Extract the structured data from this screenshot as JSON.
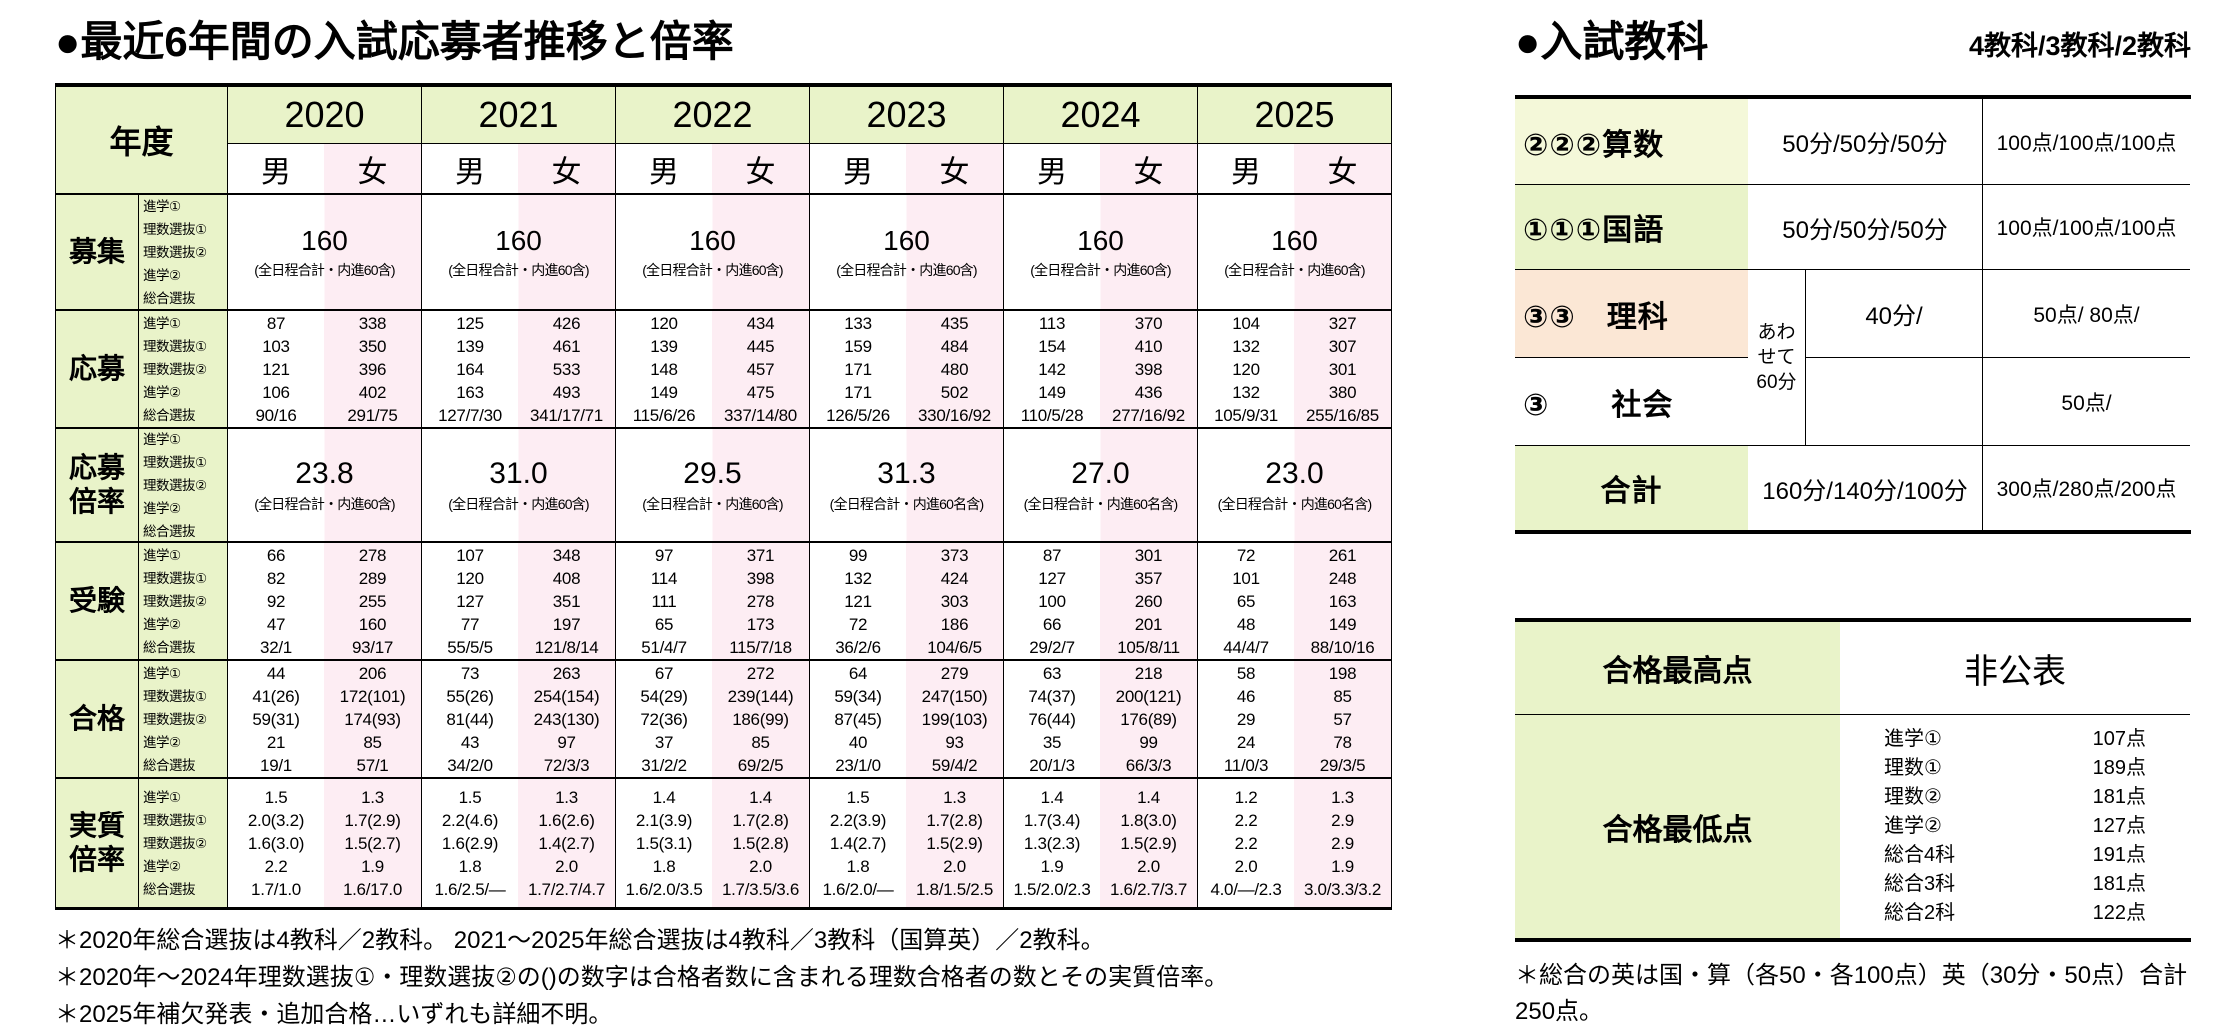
{
  "colors": {
    "label_green": "#e9f3c9",
    "female_pink": "#fdedf3",
    "science_peach": "#fbe7d5",
    "math_green": "#f4f8d9"
  },
  "left": {
    "title": "●最近6年間の入試応募者推移と倍率",
    "year_header": "年度",
    "years": [
      "2020",
      "2021",
      "2022",
      "2023",
      "2024",
      "2025"
    ],
    "genders": [
      "男",
      "女"
    ],
    "sub_labels": [
      "進学①",
      "理数選抜①",
      "理数選抜②",
      "進学②",
      "総合選抜"
    ],
    "boshu": {
      "label": "募集",
      "cols": [
        {
          "num": "160",
          "note": "(全日程合計・内進60含)"
        },
        {
          "num": "160",
          "note": "(全日程合計・内進60含)"
        },
        {
          "num": "160",
          "note": "(全日程合計・内進60含)"
        },
        {
          "num": "160",
          "note": "(全日程合計・内進60含)"
        },
        {
          "num": "160",
          "note": "(全日程合計・内進60含)"
        },
        {
          "num": "160",
          "note": "(全日程合計・内進60含)"
        }
      ]
    },
    "oubo": {
      "label": "応募",
      "cols": [
        [
          "87",
          "103",
          "121",
          "106",
          "90/16"
        ],
        [
          "338",
          "350",
          "396",
          "402",
          "291/75"
        ],
        [
          "125",
          "139",
          "164",
          "163",
          "127/7/30"
        ],
        [
          "426",
          "461",
          "533",
          "493",
          "341/17/71"
        ],
        [
          "120",
          "139",
          "148",
          "149",
          "115/6/26"
        ],
        [
          "434",
          "445",
          "457",
          "475",
          "337/14/80"
        ],
        [
          "133",
          "159",
          "171",
          "171",
          "126/5/26"
        ],
        [
          "435",
          "484",
          "480",
          "502",
          "330/16/92"
        ],
        [
          "113",
          "154",
          "142",
          "149",
          "110/5/28"
        ],
        [
          "370",
          "410",
          "398",
          "436",
          "277/16/92"
        ],
        [
          "104",
          "132",
          "120",
          "132",
          "105/9/31"
        ],
        [
          "327",
          "307",
          "301",
          "380",
          "255/16/85"
        ]
      ]
    },
    "oubo_bairitsu": {
      "label": [
        "応募",
        "倍率"
      ],
      "cols": [
        {
          "num": "23.8",
          "note": "(全日程合計・内進60含)"
        },
        {
          "num": "31.0",
          "note": "(全日程合計・内進60含)"
        },
        {
          "num": "29.5",
          "note": "(全日程合計・内進60含)"
        },
        {
          "num": "31.3",
          "note": "(全日程合計・内進60名含)"
        },
        {
          "num": "27.0",
          "note": "(全日程合計・内進60名含)"
        },
        {
          "num": "23.0",
          "note": "(全日程合計・内進60名含)"
        }
      ]
    },
    "juken": {
      "label": "受験",
      "cols": [
        [
          "66",
          "82",
          "92",
          "47",
          "32/1"
        ],
        [
          "278",
          "289",
          "255",
          "160",
          "93/17"
        ],
        [
          "107",
          "120",
          "127",
          "77",
          "55/5/5"
        ],
        [
          "348",
          "408",
          "351",
          "197",
          "121/8/14"
        ],
        [
          "97",
          "114",
          "111",
          "65",
          "51/4/7"
        ],
        [
          "371",
          "398",
          "278",
          "173",
          "115/7/18"
        ],
        [
          "99",
          "132",
          "121",
          "72",
          "36/2/6"
        ],
        [
          "373",
          "424",
          "303",
          "186",
          "104/6/5"
        ],
        [
          "87",
          "127",
          "100",
          "66",
          "29/2/7"
        ],
        [
          "301",
          "357",
          "260",
          "201",
          "105/8/11"
        ],
        [
          "72",
          "101",
          "65",
          "48",
          "44/4/7"
        ],
        [
          "261",
          "248",
          "163",
          "149",
          "88/10/16"
        ]
      ]
    },
    "goukaku": {
      "label": "合格",
      "cols": [
        [
          "44",
          "41(26)",
          "59(31)",
          "21",
          "19/1"
        ],
        [
          "206",
          "172(101)",
          "174(93)",
          "85",
          "57/1"
        ],
        [
          "73",
          "55(26)",
          "81(44)",
          "43",
          "34/2/0"
        ],
        [
          "263",
          "254(154)",
          "243(130)",
          "97",
          "72/3/3"
        ],
        [
          "67",
          "54(29)",
          "72(36)",
          "37",
          "31/2/2"
        ],
        [
          "272",
          "239(144)",
          "186(99)",
          "85",
          "69/2/5"
        ],
        [
          "64",
          "59(34)",
          "87(45)",
          "40",
          "23/1/0"
        ],
        [
          "279",
          "247(150)",
          "199(103)",
          "93",
          "59/4/2"
        ],
        [
          "63",
          "74(37)",
          "76(44)",
          "35",
          "20/1/3"
        ],
        [
          "218",
          "200(121)",
          "176(89)",
          "99",
          "66/3/3"
        ],
        [
          "58",
          "46",
          "29",
          "24",
          "11/0/3"
        ],
        [
          "198",
          "85",
          "57",
          "78",
          "29/3/5"
        ]
      ]
    },
    "jisshitsu": {
      "label": [
        "実質",
        "倍率"
      ],
      "cols": [
        [
          "1.5",
          "2.0(3.2)",
          "1.6(3.0)",
          "2.2",
          "1.7/1.0"
        ],
        [
          "1.3",
          "1.7(2.9)",
          "1.5(2.7)",
          "1.9",
          "1.6/17.0"
        ],
        [
          "1.5",
          "2.2(4.6)",
          "1.6(2.9)",
          "1.8",
          "1.6/2.5/—"
        ],
        [
          "1.3",
          "1.6(2.6)",
          "1.4(2.7)",
          "2.0",
          "1.7/2.7/4.7"
        ],
        [
          "1.4",
          "2.1(3.9)",
          "1.5(3.1)",
          "1.8",
          "1.6/2.0/3.5"
        ],
        [
          "1.4",
          "1.7(2.8)",
          "1.5(2.8)",
          "2.0",
          "1.7/3.5/3.6"
        ],
        [
          "1.5",
          "2.2(3.9)",
          "1.4(2.7)",
          "1.8",
          "1.6/2.0/—"
        ],
        [
          "1.3",
          "1.7(2.8)",
          "1.5(2.9)",
          "2.0",
          "1.8/1.5/2.5"
        ],
        [
          "1.4",
          "1.7(3.4)",
          "1.3(2.3)",
          "1.9",
          "1.5/2.0/2.3"
        ],
        [
          "1.4",
          "1.8(3.0)",
          "1.5(2.9)",
          "2.0",
          "1.6/2.7/3.7"
        ],
        [
          "1.2",
          "2.2",
          "2.2",
          "2.0",
          "4.0/—/2.3"
        ],
        [
          "1.3",
          "2.9",
          "2.9",
          "1.9",
          "3.0/3.3/3.2"
        ]
      ]
    },
    "footnotes": [
      "＊2020年総合選抜は4教科／2教科。 2021～2025年総合選抜は4教科／3教科（国算英）／2教科。",
      "＊2020年～2024年理数選抜①・理数選抜②の()の数字は合格者数に含まれる理数合格者の数とその実質倍率。",
      "＊2025年補欠発表・追加合格…いずれも詳細不明。"
    ]
  },
  "right": {
    "title": "●入試教科",
    "subtitle": "4教科/3教科/2教科",
    "subjects": [
      {
        "label": "②②②算数",
        "time": "50分/50分/50分",
        "points": "100点/100点/100点"
      },
      {
        "label": "①①①国語",
        "time": "50分/50分/50分",
        "points": "100点/100点/100点"
      },
      {
        "label": "③③　理科",
        "time": "40分/",
        "points": "50点/ 80点/"
      },
      {
        "label": "③　　社会",
        "time": "",
        "points": "50点/"
      },
      {
        "label": "合計",
        "time": "160分/140分/100分",
        "points": "300点/280点/200点"
      }
    ],
    "awasete": [
      "あわ",
      "せて",
      "60分"
    ],
    "best_score": {
      "label": "合格最高点",
      "value": "非公表"
    },
    "min_score": {
      "label": "合格最低点",
      "names": [
        "進学①",
        "理数①",
        "理数②",
        "進学②",
        "総合4科",
        "総合3科",
        "総合2科"
      ],
      "points": [
        "107点",
        "189点",
        "181点",
        "127点",
        "191点",
        "181点",
        "122点"
      ]
    },
    "footnote": "＊総合の英は国・算（各50・各100点）英（30分・50点）合計250点。"
  }
}
